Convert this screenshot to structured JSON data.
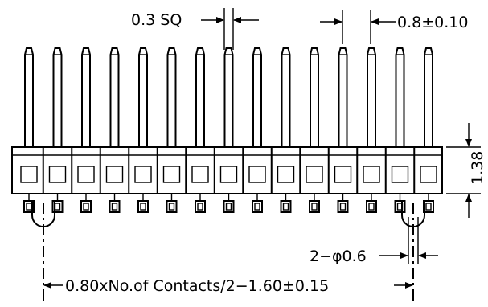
{
  "drawing": {
    "pin_count": 15,
    "dimensions": {
      "pin_square": "0.3 SQ",
      "pitch": "0.8±0.10",
      "body_height": "1.38",
      "peg_diameter": "2−φ0.6",
      "overall_length": "0.80xNo.of  Contacts/2−1.60±0.15"
    }
  }
}
